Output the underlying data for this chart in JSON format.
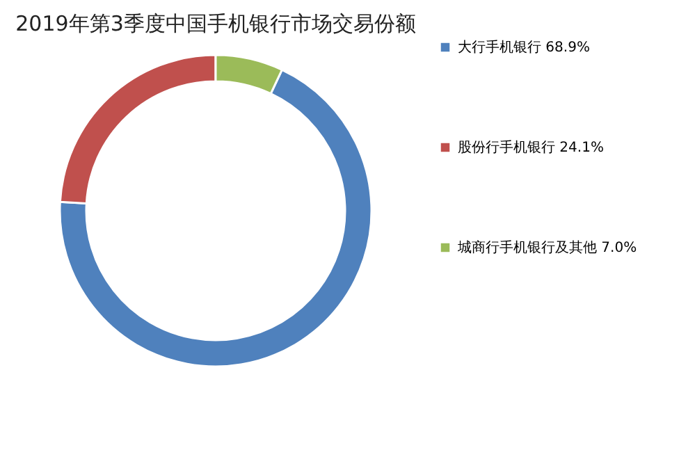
{
  "chart_data": {
    "type": "donut",
    "title": "2019年第3季度中国手机银行市场交易份额",
    "categories": [
      "大行手机银行",
      "股份行手机银行",
      "城商行手机银行及其他"
    ],
    "values": [
      68.9,
      24.1,
      7.0
    ],
    "value_labels": [
      "68.9%",
      "24.1%",
      "7.0%"
    ],
    "colors": [
      "#4f81bd",
      "#c0504d",
      "#9bbb59"
    ],
    "legend": "right"
  }
}
